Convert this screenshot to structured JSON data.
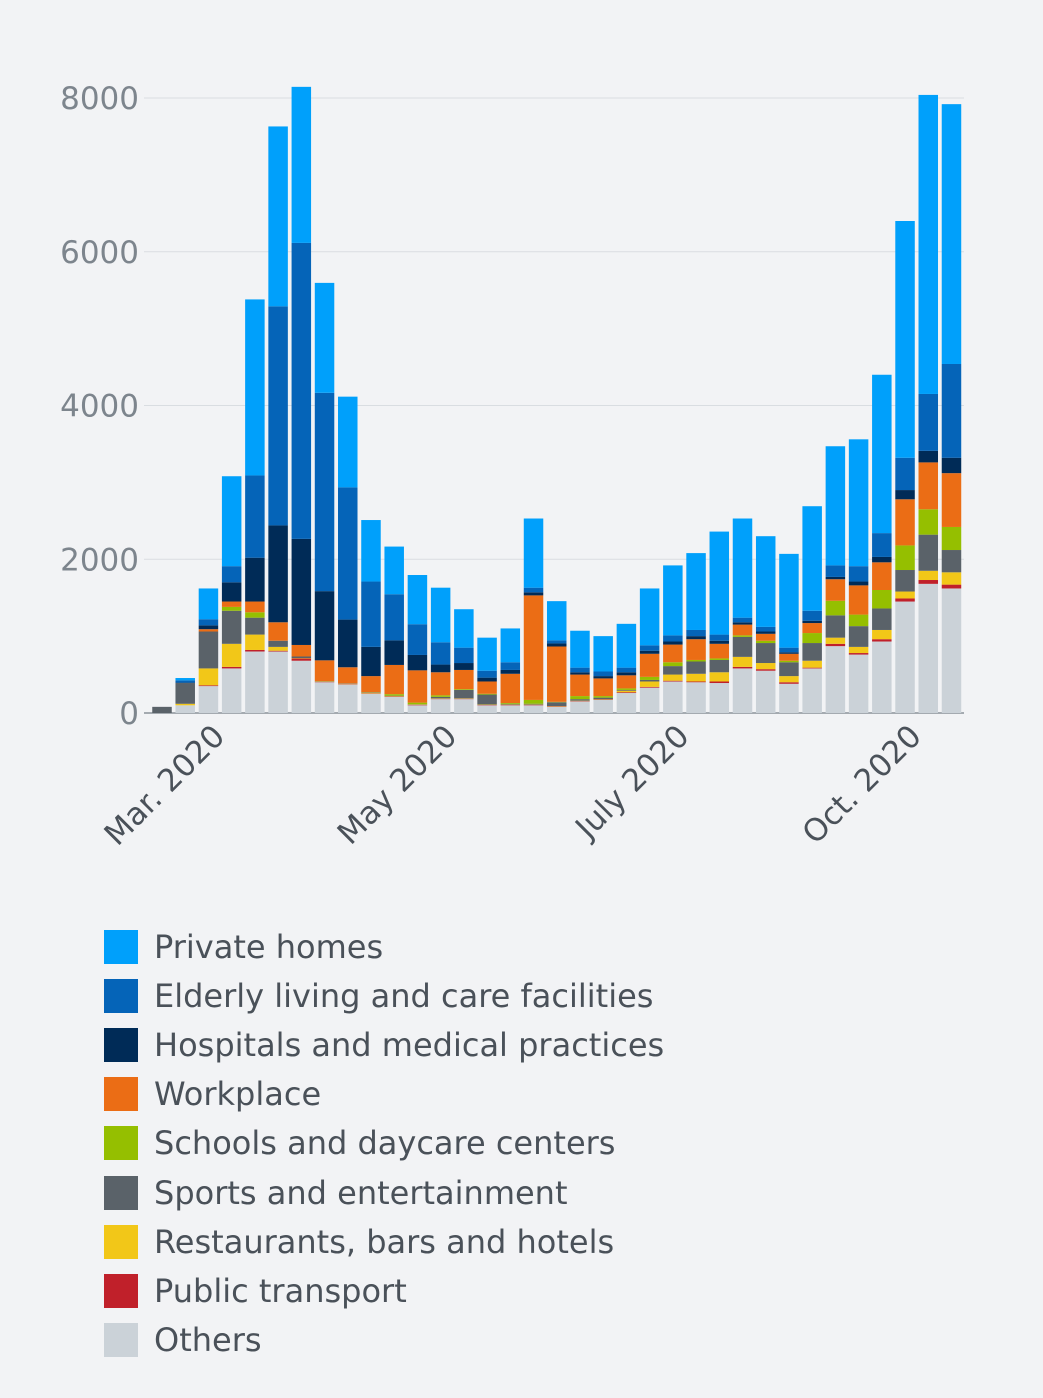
{
  "chart_data": {
    "type": "bar",
    "stacked": true,
    "title": "",
    "xlabel": "",
    "ylabel": "",
    "ylim": [
      0,
      8400
    ],
    "yticks": [
      0,
      2000,
      4000,
      6000,
      8000
    ],
    "grid": true,
    "legend_placement": "bottom",
    "x_tick_labels": [
      {
        "label": "Mar. 2020",
        "at_week": 2
      },
      {
        "label": "May 2020",
        "at_week": 12
      },
      {
        "label": "July 2020",
        "at_week": 22
      },
      {
        "label": "Oct. 2020",
        "at_week": 32
      }
    ],
    "week_count": 35,
    "series": [
      {
        "name": "Others",
        "color": "#cbd2d8",
        "values": [
          0,
          100,
          350,
          580,
          800,
          800,
          680,
          400,
          370,
          250,
          210,
          100,
          180,
          180,
          100,
          100,
          100,
          80,
          150,
          170,
          260,
          330,
          410,
          400,
          390,
          580,
          550,
          380,
          580,
          870,
          760,
          930,
          1450,
          1680,
          1620
        ]
      },
      {
        "name": "Public transport",
        "color": "#c0202a",
        "values": [
          0,
          0,
          10,
          20,
          20,
          10,
          30,
          5,
          5,
          5,
          5,
          5,
          5,
          5,
          5,
          5,
          5,
          5,
          5,
          5,
          10,
          10,
          10,
          10,
          20,
          20,
          20,
          20,
          10,
          30,
          20,
          30,
          40,
          50,
          50
        ]
      },
      {
        "name": "Restaurants, bars and hotels",
        "color": "#f2c718",
        "values": [
          0,
          20,
          220,
          300,
          200,
          50,
          5,
          5,
          5,
          5,
          5,
          5,
          5,
          5,
          5,
          5,
          5,
          5,
          5,
          5,
          20,
          70,
          80,
          100,
          120,
          130,
          80,
          80,
          90,
          80,
          80,
          120,
          90,
          120,
          160
        ]
      },
      {
        "name": "Sports and entertainment",
        "color": "#5a6269",
        "values": [
          80,
          270,
          480,
          430,
          220,
          80,
          20,
          5,
          5,
          5,
          5,
          5,
          20,
          110,
          130,
          10,
          10,
          50,
          20,
          20,
          10,
          20,
          110,
          160,
          160,
          260,
          260,
          180,
          230,
          290,
          270,
          280,
          280,
          470,
          290
        ]
      },
      {
        "name": "Schools and daycare centers",
        "color": "#95bf00",
        "values": [
          0,
          0,
          0,
          50,
          70,
          0,
          0,
          0,
          0,
          5,
          20,
          20,
          20,
          10,
          10,
          10,
          50,
          5,
          40,
          20,
          20,
          40,
          50,
          20,
          20,
          20,
          30,
          20,
          130,
          190,
          150,
          240,
          320,
          330,
          300
        ]
      },
      {
        "name": "Workplace",
        "color": "#eb6d15",
        "values": [
          0,
          0,
          30,
          70,
          140,
          240,
          150,
          270,
          210,
          210,
          380,
          420,
          300,
          250,
          160,
          380,
          1360,
          720,
          280,
          230,
          170,
          300,
          230,
          270,
          190,
          140,
          90,
          90,
          130,
          280,
          380,
          360,
          600,
          610,
          700
        ]
      },
      {
        "name": "Hospitals and medical practices",
        "color": "#002b57",
        "values": [
          0,
          5,
          50,
          250,
          570,
          1260,
          1380,
          900,
          620,
          380,
          320,
          200,
          100,
          90,
          50,
          50,
          40,
          40,
          30,
          30,
          40,
          40,
          40,
          40,
          40,
          30,
          30,
          20,
          30,
          30,
          50,
          70,
          120,
          150,
          200
        ]
      },
      {
        "name": "Elderly living and care facilities",
        "color": "#0564b8",
        "values": [
          0,
          30,
          80,
          210,
          1070,
          2850,
          3850,
          2580,
          1720,
          850,
          600,
          400,
          290,
          200,
          90,
          100,
          60,
          40,
          60,
          60,
          60,
          70,
          80,
          80,
          80,
          60,
          60,
          60,
          130,
          150,
          200,
          310,
          420,
          740,
          1220
        ]
      },
      {
        "name": "Private homes",
        "color": "#00a0fb",
        "values": [
          0,
          30,
          400,
          1170,
          2290,
          2340,
          2030,
          1430,
          1180,
          800,
          620,
          640,
          710,
          500,
          430,
          440,
          900,
          510,
          480,
          460,
          570,
          740,
          910,
          1000,
          1340,
          1290,
          1180,
          1220,
          1360,
          1550,
          1650,
          2060,
          3080,
          3890,
          3380
        ]
      }
    ]
  }
}
